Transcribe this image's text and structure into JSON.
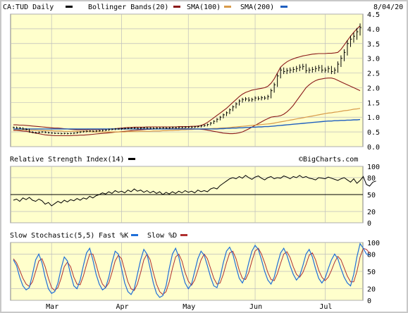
{
  "header": {
    "symbol_label": "CA:TUD Daily",
    "date": "8/04/20",
    "legend": [
      {
        "label": "Bollinger Bands(20)",
        "color": "#8b1a1a"
      },
      {
        "label": "SMA(100)",
        "color": "#d89a4a"
      },
      {
        "label": "SMA(200)",
        "color": "#1f5fbf"
      }
    ],
    "symbol_swatch_color": "#000000"
  },
  "rsi_panel": {
    "title": "Relative Strength Index(14)",
    "swatch_color": "#000000",
    "watermark": "©BigCharts.com"
  },
  "stoch_panel": {
    "title": "Slow Stochastic(5,5)",
    "fast_label": "Fast %K",
    "fast_color": "#1f6fd8",
    "slow_label": "Slow %D",
    "slow_color": "#b03030"
  },
  "colors": {
    "plot_bg": "#ffffcc",
    "price": "#000000",
    "bollinger": "#8b1a1a",
    "sma100": "#d89a4a",
    "sma200": "#1f5fbf"
  },
  "chart_data": [
    {
      "type": "line",
      "panel": "price",
      "title": "CA:TUD Daily",
      "x_tick_labels": [
        "Mar",
        "Apr",
        "May",
        "Jun",
        "Jul"
      ],
      "y_ticks": [
        0.0,
        0.5,
        1.0,
        1.5,
        2.0,
        2.5,
        3.0,
        3.5,
        4.0,
        4.5
      ],
      "y_tick_labels": [
        "0.0",
        "0.5",
        "1.0",
        "1.5",
        "2.0",
        "2.5",
        "3.0",
        "3.5",
        "4.0",
        "4.5"
      ],
      "ylim": [
        0,
        4.5
      ],
      "grid": true,
      "close": [
        0.65,
        0.64,
        0.63,
        0.6,
        0.58,
        0.5,
        0.48,
        0.47,
        0.49,
        0.5,
        0.48,
        0.47,
        0.46,
        0.45,
        0.45,
        0.44,
        0.45,
        0.44,
        0.45,
        0.46,
        0.48,
        0.5,
        0.51,
        0.52,
        0.53,
        0.52,
        0.53,
        0.54,
        0.55,
        0.56,
        0.58,
        0.59,
        0.6,
        0.6,
        0.61,
        0.62,
        0.62,
        0.63,
        0.63,
        0.62,
        0.63,
        0.64,
        0.63,
        0.63,
        0.62,
        0.63,
        0.63,
        0.64,
        0.63,
        0.64,
        0.65,
        0.64,
        0.65,
        0.65,
        0.66,
        0.66,
        0.66,
        0.67,
        0.68,
        0.7,
        0.72,
        0.75,
        0.8,
        0.86,
        0.93,
        1.0,
        1.08,
        1.15,
        1.25,
        1.35,
        1.45,
        1.55,
        1.6,
        1.62,
        1.58,
        1.6,
        1.65,
        1.63,
        1.66,
        1.65,
        1.7,
        1.9,
        2.1,
        2.4,
        2.6,
        2.55,
        2.58,
        2.6,
        2.62,
        2.65,
        2.7,
        2.72,
        2.58,
        2.6,
        2.62,
        2.65,
        2.68,
        2.6,
        2.6,
        2.65,
        2.55,
        2.6,
        2.8,
        3.0,
        3.2,
        3.5,
        3.65,
        3.75,
        3.9,
        4.05
      ],
      "bollinger_upper": [
        0.74,
        0.74,
        0.73,
        0.73,
        0.72,
        0.71,
        0.7,
        0.69,
        0.68,
        0.67,
        0.66,
        0.65,
        0.64,
        0.63,
        0.63,
        0.62,
        0.61,
        0.6,
        0.59,
        0.58,
        0.57,
        0.57,
        0.57,
        0.57,
        0.58,
        0.58,
        0.58,
        0.58,
        0.59,
        0.59,
        0.6,
        0.6,
        0.61,
        0.62,
        0.63,
        0.64,
        0.65,
        0.65,
        0.66,
        0.66,
        0.66,
        0.66,
        0.67,
        0.67,
        0.67,
        0.67,
        0.67,
        0.67,
        0.67,
        0.67,
        0.67,
        0.67,
        0.68,
        0.68,
        0.68,
        0.68,
        0.69,
        0.69,
        0.7,
        0.72,
        0.76,
        0.82,
        0.9,
        0.98,
        1.06,
        1.14,
        1.22,
        1.3,
        1.4,
        1.5,
        1.6,
        1.7,
        1.78,
        1.84,
        1.88,
        1.92,
        1.94,
        1.96,
        1.98,
        2.0,
        2.05,
        2.15,
        2.3,
        2.5,
        2.7,
        2.8,
        2.88,
        2.94,
        2.98,
        3.02,
        3.05,
        3.08,
        3.1,
        3.12,
        3.14,
        3.15,
        3.16,
        3.16,
        3.16,
        3.17,
        3.17,
        3.18,
        3.2,
        3.3,
        3.45,
        3.6,
        3.75,
        3.88,
        4.0,
        4.1
      ],
      "bollinger_lower": [
        0.55,
        0.55,
        0.54,
        0.53,
        0.52,
        0.5,
        0.48,
        0.46,
        0.44,
        0.42,
        0.4,
        0.39,
        0.38,
        0.37,
        0.37,
        0.37,
        0.37,
        0.37,
        0.37,
        0.38,
        0.38,
        0.39,
        0.39,
        0.4,
        0.41,
        0.42,
        0.43,
        0.44,
        0.45,
        0.46,
        0.47,
        0.48,
        0.49,
        0.5,
        0.51,
        0.52,
        0.53,
        0.54,
        0.55,
        0.56,
        0.57,
        0.58,
        0.59,
        0.59,
        0.6,
        0.6,
        0.6,
        0.6,
        0.61,
        0.61,
        0.61,
        0.61,
        0.61,
        0.61,
        0.61,
        0.61,
        0.61,
        0.6,
        0.6,
        0.59,
        0.58,
        0.56,
        0.54,
        0.52,
        0.5,
        0.48,
        0.46,
        0.45,
        0.44,
        0.44,
        0.45,
        0.47,
        0.5,
        0.55,
        0.6,
        0.66,
        0.72,
        0.78,
        0.84,
        0.9,
        0.95,
        1.0,
        1.02,
        1.03,
        1.05,
        1.1,
        1.18,
        1.28,
        1.4,
        1.55,
        1.7,
        1.85,
        2.0,
        2.1,
        2.18,
        2.24,
        2.28,
        2.3,
        2.32,
        2.33,
        2.33,
        2.3,
        2.25,
        2.2,
        2.15,
        2.1,
        2.05,
        2.0,
        1.95,
        1.9
      ],
      "sma100": [
        0.58,
        0.58,
        0.57,
        0.57,
        0.57,
        0.56,
        0.56,
        0.56,
        0.55,
        0.55,
        0.54,
        0.54,
        0.54,
        0.53,
        0.53,
        0.53,
        0.52,
        0.52,
        0.52,
        0.52,
        0.51,
        0.51,
        0.51,
        0.51,
        0.51,
        0.5,
        0.5,
        0.5,
        0.5,
        0.5,
        0.5,
        0.5,
        0.5,
        0.5,
        0.5,
        0.5,
        0.51,
        0.51,
        0.51,
        0.51,
        0.52,
        0.52,
        0.52,
        0.52,
        0.53,
        0.53,
        0.53,
        0.54,
        0.54,
        0.55,
        0.55,
        0.56,
        0.56,
        0.57,
        0.57,
        0.58,
        0.58,
        0.59,
        0.59,
        0.6,
        0.6,
        0.61,
        0.61,
        0.62,
        0.62,
        0.63,
        0.64,
        0.64,
        0.65,
        0.66,
        0.67,
        0.68,
        0.69,
        0.7,
        0.71,
        0.72,
        0.73,
        0.74,
        0.75,
        0.76,
        0.77,
        0.78,
        0.8,
        0.82,
        0.84,
        0.86,
        0.88,
        0.9,
        0.92,
        0.94,
        0.96,
        0.98,
        1.0,
        1.02,
        1.04,
        1.06,
        1.08,
        1.1,
        1.12,
        1.14,
        1.15,
        1.17,
        1.18,
        1.2,
        1.22,
        1.23,
        1.25,
        1.27,
        1.28,
        1.3
      ],
      "sma200": [
        0.6,
        0.6,
        0.6,
        0.6,
        0.6,
        0.6,
        0.6,
        0.6,
        0.6,
        0.6,
        0.6,
        0.6,
        0.6,
        0.6,
        0.6,
        0.6,
        0.6,
        0.6,
        0.6,
        0.6,
        0.6,
        0.6,
        0.6,
        0.6,
        0.6,
        0.6,
        0.6,
        0.6,
        0.6,
        0.6,
        0.6,
        0.6,
        0.6,
        0.6,
        0.6,
        0.6,
        0.6,
        0.6,
        0.6,
        0.6,
        0.6,
        0.6,
        0.6,
        0.6,
        0.6,
        0.6,
        0.6,
        0.6,
        0.6,
        0.6,
        0.6,
        0.6,
        0.6,
        0.6,
        0.6,
        0.6,
        0.6,
        0.6,
        0.6,
        0.6,
        0.6,
        0.6,
        0.6,
        0.6,
        0.6,
        0.61,
        0.61,
        0.62,
        0.62,
        0.63,
        0.63,
        0.64,
        0.64,
        0.65,
        0.65,
        0.66,
        0.66,
        0.67,
        0.67,
        0.68,
        0.68,
        0.69,
        0.7,
        0.71,
        0.72,
        0.73,
        0.74,
        0.75,
        0.76,
        0.77,
        0.78,
        0.79,
        0.8,
        0.81,
        0.82,
        0.83,
        0.84,
        0.85,
        0.86,
        0.87,
        0.87,
        0.88,
        0.88,
        0.89,
        0.89,
        0.9,
        0.9,
        0.91,
        0.91,
        0.92
      ]
    },
    {
      "type": "line",
      "panel": "rsi",
      "title": "Relative Strength Index(14)",
      "y_ticks": [
        0,
        20,
        50,
        80,
        100
      ],
      "y_tick_labels": [
        "0",
        "20",
        "50",
        "80",
        "100"
      ],
      "ylim": [
        0,
        100
      ],
      "reference_line": 50,
      "values": [
        40,
        42,
        38,
        44,
        41,
        45,
        40,
        38,
        42,
        39,
        33,
        36,
        30,
        34,
        38,
        35,
        40,
        37,
        41,
        39,
        43,
        40,
        44,
        42,
        47,
        44,
        48,
        50,
        53,
        51,
        55,
        52,
        57,
        54,
        56,
        53,
        58,
        55,
        60,
        56,
        58,
        54,
        57,
        53,
        56,
        52,
        55,
        50,
        54,
        51,
        55,
        52,
        56,
        53,
        57,
        54,
        56,
        53,
        58,
        55,
        57,
        55,
        60,
        62,
        60,
        66,
        70,
        74,
        78,
        80,
        78,
        82,
        79,
        84,
        80,
        77,
        81,
        83,
        79,
        76,
        80,
        82,
        78,
        80,
        79,
        83,
        81,
        78,
        82,
        80,
        84,
        80,
        82,
        79,
        78,
        76,
        80,
        79,
        78,
        81,
        79,
        77,
        75,
        78,
        80,
        76,
        72,
        78,
        70,
        75,
        82,
        68,
        65,
        72,
        74
      ]
    },
    {
      "type": "line",
      "panel": "stochastic",
      "title": "Slow Stochastic(5,5)",
      "y_ticks": [
        0,
        20,
        50,
        80,
        100
      ],
      "y_tick_labels": [
        "0",
        "20",
        "50",
        "80",
        "100"
      ],
      "ylim": [
        0,
        100
      ],
      "series": [
        {
          "name": "Fast %K",
          "values": [
            70,
            60,
            40,
            25,
            18,
            22,
            45,
            70,
            80,
            65,
            40,
            20,
            12,
            15,
            30,
            55,
            75,
            68,
            45,
            25,
            20,
            35,
            60,
            82,
            90,
            70,
            45,
            28,
            18,
            22,
            40,
            65,
            85,
            80,
            55,
            30,
            15,
            10,
            20,
            45,
            70,
            88,
            80,
            55,
            30,
            12,
            5,
            8,
            25,
            55,
            80,
            90,
            75,
            50,
            30,
            20,
            28,
            50,
            72,
            85,
            78,
            60,
            40,
            25,
            22,
            40,
            65,
            85,
            92,
            80,
            58,
            38,
            30,
            42,
            65,
            85,
            95,
            88,
            70,
            50,
            35,
            28,
            40,
            62,
            82,
            90,
            78,
            60,
            45,
            35,
            42,
            60,
            80,
            88,
            75,
            55,
            38,
            30,
            38,
            55,
            70,
            80,
            72,
            55,
            40,
            30,
            25,
            45,
            75,
            98,
            90,
            80,
            78
          ]
        },
        {
          "name": "Slow %D",
          "values": [
            72,
            65,
            52,
            38,
            28,
            24,
            32,
            50,
            68,
            72,
            58,
            38,
            22,
            17,
            22,
            38,
            58,
            66,
            58,
            40,
            28,
            27,
            42,
            62,
            80,
            80,
            62,
            42,
            28,
            22,
            30,
            48,
            68,
            78,
            72,
            52,
            32,
            20,
            17,
            28,
            48,
            70,
            80,
            70,
            48,
            28,
            15,
            10,
            15,
            32,
            55,
            75,
            80,
            68,
            48,
            33,
            26,
            35,
            52,
            70,
            80,
            72,
            55,
            38,
            28,
            30,
            45,
            65,
            82,
            85,
            72,
            52,
            38,
            36,
            48,
            68,
            85,
            90,
            80,
            65,
            48,
            36,
            34,
            46,
            64,
            80,
            84,
            74,
            58,
            45,
            40,
            48,
            62,
            78,
            82,
            70,
            52,
            40,
            34,
            40,
            52,
            66,
            76,
            70,
            56,
            42,
            32,
            32,
            50,
            75,
            90,
            88,
            82
          ]
        }
      ]
    }
  ]
}
